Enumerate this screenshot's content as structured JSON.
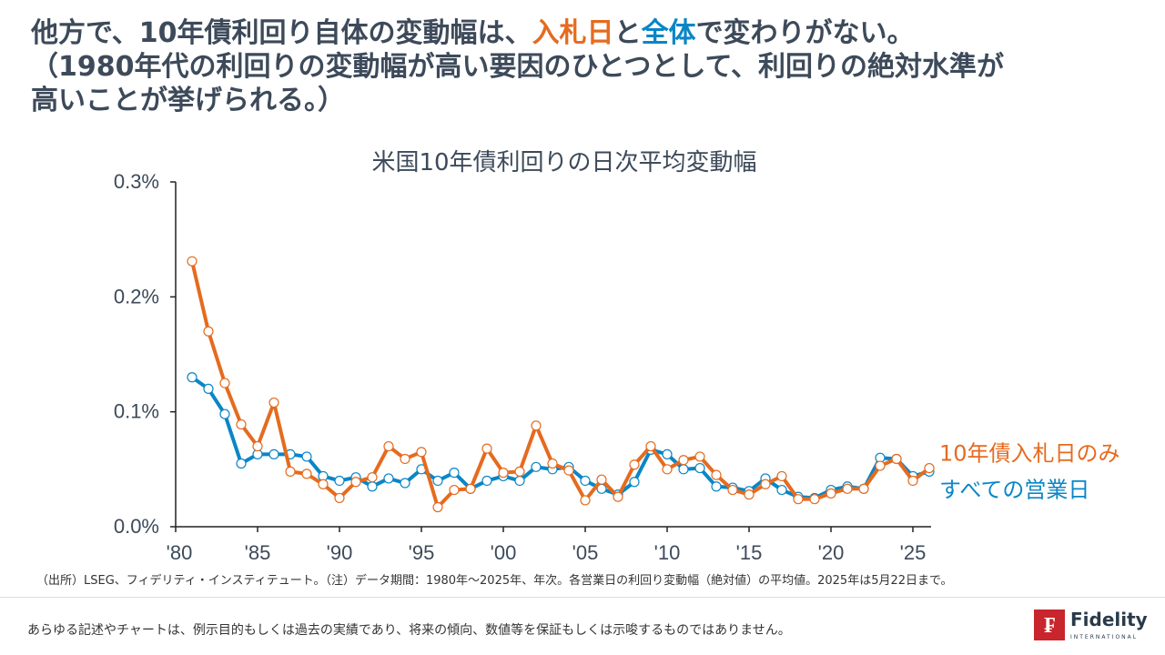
{
  "headline": {
    "line1_pre": "他方で、10年債利回り自体の変動幅は、",
    "line1_orange": "入札日",
    "line1_mid": "と",
    "line1_blue": "全体",
    "line1_post": "で変わりがない。",
    "line2": "（1980年代の利回りの変動幅が高い要因のひとつとして、利回りの絶対水準が",
    "line3": "高いことが挙げられる。）"
  },
  "chart_data": {
    "type": "line",
    "title": "米国10年債利回りの日次平均変動幅",
    "xlabel": "",
    "ylabel": "",
    "ylim": [
      0,
      0.3
    ],
    "y_ticks": [
      "0.0%",
      "0.1%",
      "0.2%",
      "0.3%"
    ],
    "y_tick_values": [
      0,
      0.1,
      0.2,
      0.3
    ],
    "x_ticks": [
      "'80",
      "'85",
      "'90",
      "'95",
      "'00",
      "'05",
      "'10",
      "'15",
      "'20",
      "'25"
    ],
    "x": [
      1980,
      1981,
      1982,
      1983,
      1984,
      1985,
      1986,
      1987,
      1988,
      1989,
      1990,
      1991,
      1992,
      1993,
      1994,
      1995,
      1996,
      1997,
      1998,
      1999,
      2000,
      2001,
      2002,
      2003,
      2004,
      2005,
      2006,
      2007,
      2008,
      2009,
      2010,
      2011,
      2012,
      2013,
      2014,
      2015,
      2016,
      2017,
      2018,
      2019,
      2020,
      2021,
      2022,
      2023,
      2024,
      2025
    ],
    "series": [
      {
        "name": "10年債入札日のみ",
        "color": "#e56b1f",
        "values": [
          0.231,
          0.17,
          0.125,
          0.089,
          0.07,
          0.108,
          0.048,
          0.046,
          0.037,
          0.025,
          0.039,
          0.043,
          0.07,
          0.059,
          0.065,
          0.017,
          0.032,
          0.033,
          0.068,
          0.047,
          0.048,
          0.088,
          0.055,
          0.049,
          0.023,
          0.041,
          0.026,
          0.054,
          0.07,
          0.05,
          0.058,
          0.061,
          0.045,
          0.032,
          0.028,
          0.037,
          0.044,
          0.024,
          0.024,
          0.029,
          0.033,
          0.033,
          0.053,
          0.059,
          0.04,
          0.051
        ]
      },
      {
        "name": "すべての営業日",
        "color": "#0a86c6",
        "values": [
          0.13,
          0.12,
          0.098,
          0.055,
          0.063,
          0.063,
          0.063,
          0.061,
          0.044,
          0.04,
          0.043,
          0.035,
          0.042,
          0.038,
          0.05,
          0.04,
          0.047,
          0.033,
          0.04,
          0.044,
          0.04,
          0.052,
          0.05,
          0.052,
          0.04,
          0.033,
          0.028,
          0.039,
          0.067,
          0.063,
          0.05,
          0.051,
          0.035,
          0.034,
          0.031,
          0.042,
          0.032,
          0.026,
          0.025,
          0.032,
          0.035,
          0.033,
          0.06,
          0.059,
          0.044,
          0.048
        ]
      }
    ],
    "legend_placement": "right"
  },
  "footer": {
    "source": "（出所）LSEG、フィデリティ・インスティテュート。（注）データ期間：1980年～2025年、年次。各営業日の利回り変動幅（絶対値）の平均値。2025年は5月22日まで。",
    "disclaimer": "あらゆる記述やチャートは、例示目的もしくは過去の実績であり、将来の傾向、数値等を保証もしくは示唆するものではありません。",
    "logo_text": "Fidelity",
    "logo_sub": "INTERNATIONAL"
  }
}
